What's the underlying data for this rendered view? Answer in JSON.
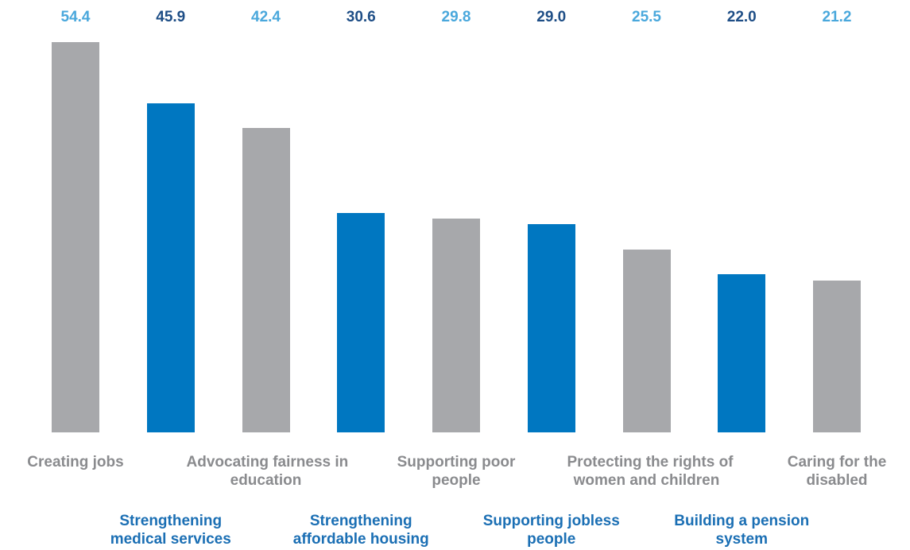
{
  "chart_data": {
    "type": "bar",
    "categories": [
      "Creating jobs",
      "Strengthening medical services",
      "Advocating fairness in education",
      "Strengthening affordable housing",
      "Supporting poor people",
      "Supporting jobless people",
      "Protecting the rights of women and children",
      "Building a pension system",
      "Caring for the disabled"
    ],
    "category_label_lines": [
      [
        "Creating jobs"
      ],
      [
        "Strengthening",
        "medical services"
      ],
      [
        "Advocating fairness in",
        "education"
      ],
      [
        "Strengthening",
        "affordable housing"
      ],
      [
        "Supporting poor",
        "people"
      ],
      [
        "Supporting jobless",
        "people"
      ],
      [
        "Protecting the rights of",
        "women and children"
      ],
      [
        "Building a pension",
        "system"
      ],
      [
        "Caring for the",
        "disabled"
      ]
    ],
    "values": [
      54.4,
      45.9,
      42.4,
      30.6,
      29.8,
      29.0,
      25.5,
      22.0,
      21.2
    ],
    "value_labels": [
      "54.4",
      "45.9",
      "42.4",
      "30.6",
      "29.8",
      "29.0",
      "25.5",
      "22.0",
      "21.2"
    ],
    "ylim": [
      0,
      54.4
    ],
    "grid": false,
    "legend": "none",
    "colors": {
      "bar_gray": "#a7a8ab",
      "bar_blue": "#0077c1",
      "label_gray": "#8a8b8e",
      "label_blue": "#1b6fb4",
      "value_light_blue": "#4aa8dc",
      "value_dark_blue": "#1e4e86"
    }
  }
}
